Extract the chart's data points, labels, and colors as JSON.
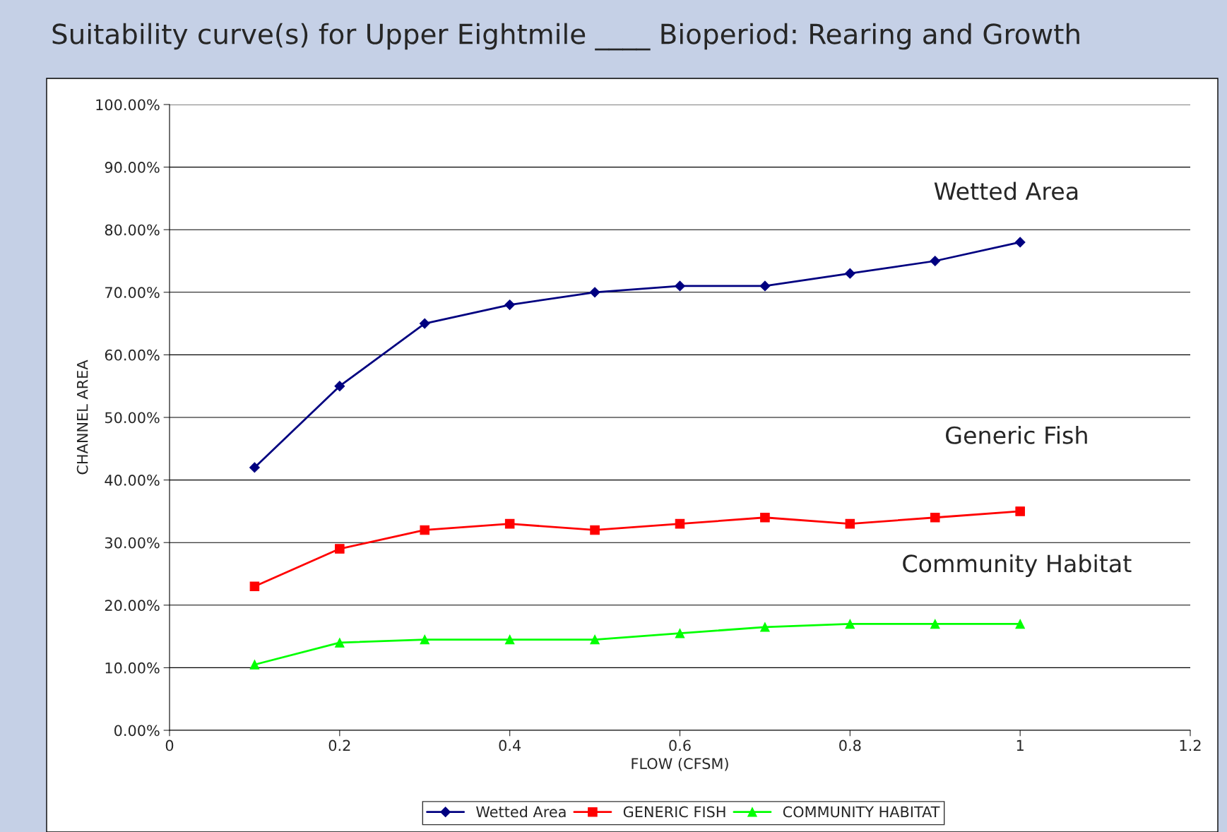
{
  "chart_data": {
    "type": "line",
    "title": "Suitability curve(s) for Upper Eightmile ____ Bioperiod: Rearing and Growth",
    "xlabel": "FLOW (CFSM)",
    "ylabel": "CHANNEL AREA",
    "x": [
      0.1,
      0.2,
      0.3,
      0.4,
      0.5,
      0.6,
      0.7,
      0.8,
      0.9,
      1.0
    ],
    "series": [
      {
        "name": "Wetted Area",
        "color": "#000080",
        "marker": "diamond",
        "values": [
          42,
          55,
          65,
          68,
          70,
          71,
          71,
          73,
          75,
          78
        ]
      },
      {
        "name": "GENERIC FISH",
        "color": "#ff0000",
        "marker": "square",
        "values": [
          23,
          29,
          32,
          33,
          32,
          33,
          34,
          33,
          34,
          35
        ]
      },
      {
        "name": "COMMUNITY HABITAT",
        "color": "#00ff00",
        "marker": "triangle",
        "values": [
          10.5,
          14,
          14.5,
          14.5,
          14.5,
          15.5,
          16.5,
          17,
          17,
          17
        ]
      }
    ],
    "annotations": [
      "Wetted Area",
      "Generic Fish",
      "Community Habitat"
    ],
    "xlim": [
      0,
      1.2
    ],
    "xticks": [
      0,
      0.2,
      0.4,
      0.6,
      0.8,
      1,
      1.2
    ],
    "ylim": [
      0,
      100
    ],
    "yticks": [
      {
        "value": 0,
        "label": "0.00%"
      },
      {
        "value": 10,
        "label": "10.00%"
      },
      {
        "value": 20,
        "label": "20.00%"
      },
      {
        "value": 30,
        "label": "30.00%"
      },
      {
        "value": 40,
        "label": "40.00%"
      },
      {
        "value": 50,
        "label": "50.00%"
      },
      {
        "value": 60,
        "label": "60.00%"
      },
      {
        "value": 70,
        "label": "70.00%"
      },
      {
        "value": 80,
        "label": "80.00%"
      },
      {
        "value": 90,
        "label": "90.00%"
      },
      {
        "value": 100,
        "label": "100.00%"
      }
    ],
    "grid": "y",
    "legend": "bottom",
    "line_style": "solid"
  }
}
